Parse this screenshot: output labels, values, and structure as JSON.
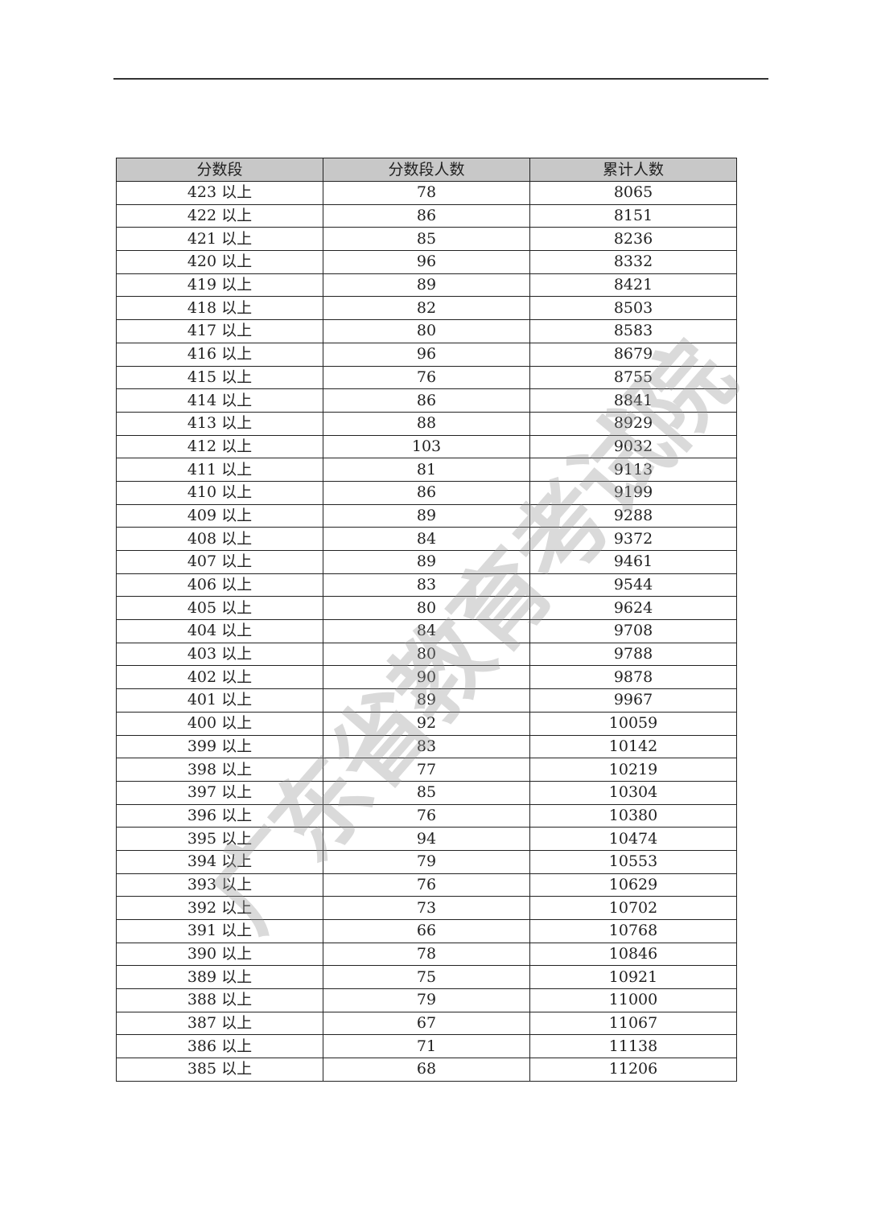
{
  "table": {
    "headers": [
      "分数段",
      "分数段人数",
      "累计人数"
    ],
    "rows": [
      [
        "423 以上",
        "78",
        "8065"
      ],
      [
        "422 以上",
        "86",
        "8151"
      ],
      [
        "421 以上",
        "85",
        "8236"
      ],
      [
        "420 以上",
        "96",
        "8332"
      ],
      [
        "419 以上",
        "89",
        "8421"
      ],
      [
        "418 以上",
        "82",
        "8503"
      ],
      [
        "417 以上",
        "80",
        "8583"
      ],
      [
        "416 以上",
        "96",
        "8679"
      ],
      [
        "415 以上",
        "76",
        "8755"
      ],
      [
        "414 以上",
        "86",
        "8841"
      ],
      [
        "413 以上",
        "88",
        "8929"
      ],
      [
        "412 以上",
        "103",
        "9032"
      ],
      [
        "411 以上",
        "81",
        "9113"
      ],
      [
        "410 以上",
        "86",
        "9199"
      ],
      [
        "409 以上",
        "89",
        "9288"
      ],
      [
        "408 以上",
        "84",
        "9372"
      ],
      [
        "407 以上",
        "89",
        "9461"
      ],
      [
        "406 以上",
        "83",
        "9544"
      ],
      [
        "405 以上",
        "80",
        "9624"
      ],
      [
        "404 以上",
        "84",
        "9708"
      ],
      [
        "403 以上",
        "80",
        "9788"
      ],
      [
        "402 以上",
        "90",
        "9878"
      ],
      [
        "401 以上",
        "89",
        "9967"
      ],
      [
        "400 以上",
        "92",
        "10059"
      ],
      [
        "399 以上",
        "83",
        "10142"
      ],
      [
        "398 以上",
        "77",
        "10219"
      ],
      [
        "397 以上",
        "85",
        "10304"
      ],
      [
        "396 以上",
        "76",
        "10380"
      ],
      [
        "395 以上",
        "94",
        "10474"
      ],
      [
        "394 以上",
        "79",
        "10553"
      ],
      [
        "393 以上",
        "76",
        "10629"
      ],
      [
        "392 以上",
        "73",
        "10702"
      ],
      [
        "391 以上",
        "66",
        "10768"
      ],
      [
        "390 以上",
        "78",
        "10846"
      ],
      [
        "389 以上",
        "75",
        "10921"
      ],
      [
        "388 以上",
        "79",
        "11000"
      ],
      [
        "387 以上",
        "67",
        "11067"
      ],
      [
        "386 以上",
        "71",
        "11138"
      ],
      [
        "385 以上",
        "68",
        "11206"
      ]
    ]
  },
  "watermark": "广东省教育考试院",
  "colors": {
    "header_bg": "#c8c8c8",
    "border": "#222222"
  }
}
